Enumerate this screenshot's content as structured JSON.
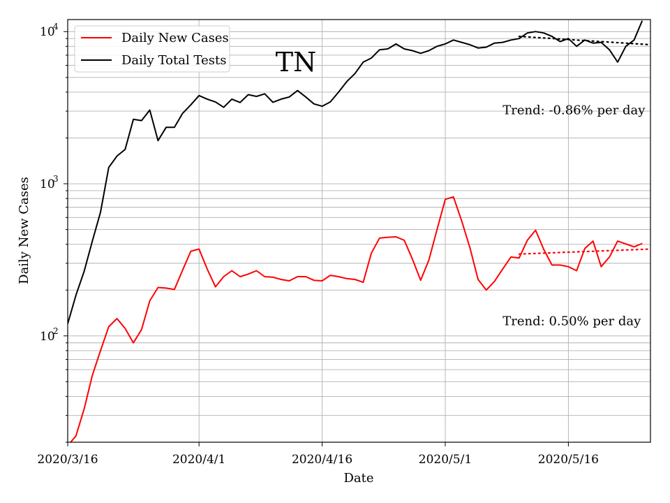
{
  "chart_data": {
    "type": "line",
    "title": "TN",
    "xlabel": "Date",
    "ylabel": "Daily New Cases",
    "y_scale": "log",
    "ylim": [
      20,
      12000
    ],
    "xlim": [
      "2020-03-16",
      "2020-05-26"
    ],
    "grid": true,
    "legend_position": "top-left",
    "x_tick_labels": [
      "2020/3/16",
      "2020/4/1",
      "2020/4/16",
      "2020/5/1",
      "2020/5/16"
    ],
    "x_ticks": [
      "2020-03-16",
      "2020-04-01",
      "2020-04-16",
      "2020-05-01",
      "2020-05-16"
    ],
    "y_ticks": [
      {
        "value": 100,
        "base": "10",
        "exp": "2"
      },
      {
        "value": 1000,
        "base": "10",
        "exp": "3"
      },
      {
        "value": 10000,
        "base": "10",
        "exp": "4"
      }
    ],
    "series": [
      {
        "name": "Daily New Cases",
        "color": "#ff0000",
        "start_date": "2020-03-16",
        "values": [
          19,
          22,
          33,
          55,
          80,
          115,
          130,
          112,
          90,
          110,
          170,
          208,
          206,
          202,
          270,
          360,
          372,
          275,
          210,
          245,
          268,
          245,
          255,
          268,
          245,
          243,
          235,
          230,
          245,
          245,
          232,
          230,
          250,
          245,
          238,
          235,
          225,
          350,
          440,
          445,
          448,
          425,
          320,
          232,
          315,
          500,
          790,
          820,
          570,
          380,
          235,
          200,
          228,
          275,
          330,
          325,
          425,
          495,
          370,
          292,
          292,
          285,
          268,
          375,
          420,
          285,
          330,
          420,
          402,
          385,
          405
        ]
      },
      {
        "name": "Daily Total Tests",
        "color": "#000000",
        "start_date": "2020-03-16",
        "values": [
          120,
          185,
          265,
          420,
          650,
          1280,
          1520,
          1680,
          2650,
          2600,
          3050,
          1920,
          2350,
          2350,
          2900,
          3300,
          3800,
          3600,
          3450,
          3180,
          3600,
          3420,
          3850,
          3750,
          3900,
          3430,
          3600,
          3720,
          4100,
          3720,
          3350,
          3230,
          3450,
          4000,
          4700,
          5300,
          6300,
          6700,
          7600,
          7700,
          8300,
          7700,
          7500,
          7200,
          7500,
          8000,
          8300,
          8800,
          8500,
          8200,
          7800,
          7900,
          8400,
          8500,
          8800,
          9000,
          9800,
          10000,
          9800,
          9300,
          8600,
          9000,
          8000,
          8800,
          8400,
          8500,
          7600,
          6300,
          8000,
          8800,
          11800
        ]
      }
    ],
    "trendlines": [
      {
        "series": "Daily Total Tests",
        "color": "#000000",
        "start_date": "2020-05-10",
        "end_date": "2020-05-26",
        "start_value": 9300,
        "end_value": 8200
      },
      {
        "series": "Daily New Cases",
        "color": "#ff0000",
        "start_date": "2020-05-10",
        "end_date": "2020-05-26",
        "start_value": 345,
        "end_value": 372
      }
    ],
    "annotations": [
      {
        "text": "Trend: -0.86% per day",
        "date": "2020-05-08",
        "value": 3050
      },
      {
        "text": "Trend: 0.50% per day",
        "date": "2020-05-08",
        "value": 125
      }
    ]
  }
}
